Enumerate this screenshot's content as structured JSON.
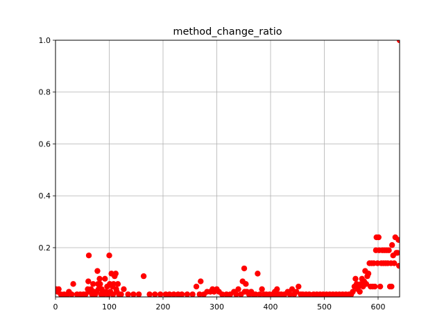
{
  "chart_data": {
    "type": "scatter",
    "title": "method_change_ratio",
    "xlabel": "",
    "ylabel": "",
    "xlim": [
      0,
      640
    ],
    "ylim": [
      0.01,
      1.0
    ],
    "xticks": [
      0,
      100,
      200,
      300,
      400,
      500,
      600
    ],
    "xtick_labels": [
      "0",
      "100",
      "200",
      "300",
      "400",
      "500",
      "600"
    ],
    "yticks": [
      0.2,
      0.4,
      0.6,
      0.8,
      1.0
    ],
    "ytick_labels": [
      "0.2",
      "0.4",
      "0.6",
      "0.8",
      "1.0"
    ],
    "grid": true,
    "marker_color": "#ff0000",
    "grid_color": "#b0b0b0",
    "series": [
      {
        "values": [
          [
            1,
            0.04
          ],
          [
            4,
            0.03
          ],
          [
            6,
            0.04
          ],
          [
            10,
            0.02
          ],
          [
            16,
            0.02
          ],
          [
            22,
            0.02
          ],
          [
            25,
            0.03
          ],
          [
            30,
            0.02
          ],
          [
            33,
            0.06
          ],
          [
            40,
            0.02
          ],
          [
            46,
            0.02
          ],
          [
            52,
            0.02
          ],
          [
            56,
            0.02
          ],
          [
            60,
            0.04
          ],
          [
            61,
            0.07
          ],
          [
            62,
            0.17
          ],
          [
            64,
            0.03
          ],
          [
            66,
            0.04
          ],
          [
            68,
            0.02
          ],
          [
            70,
            0.06
          ],
          [
            72,
            0.03
          ],
          [
            74,
            0.02
          ],
          [
            76,
            0.03
          ],
          [
            78,
            0.11
          ],
          [
            79,
            0.06
          ],
          [
            80,
            0.04
          ],
          [
            82,
            0.08
          ],
          [
            83,
            0.06
          ],
          [
            85,
            0.02
          ],
          [
            86,
            0.04
          ],
          [
            88,
            0.03
          ],
          [
            90,
            0.02
          ],
          [
            92,
            0.08
          ],
          [
            94,
            0.03
          ],
          [
            96,
            0.05
          ],
          [
            98,
            0.02
          ],
          [
            100,
            0.17
          ],
          [
            101,
            0.06
          ],
          [
            102,
            0.03
          ],
          [
            104,
            0.1
          ],
          [
            106,
            0.05
          ],
          [
            107,
            0.02
          ],
          [
            108,
            0.06
          ],
          [
            110,
            0.09
          ],
          [
            112,
            0.1
          ],
          [
            113,
            0.04
          ],
          [
            114,
            0.03
          ],
          [
            116,
            0.06
          ],
          [
            118,
            0.02
          ],
          [
            122,
            0.02
          ],
          [
            127,
            0.04
          ],
          [
            135,
            0.02
          ],
          [
            145,
            0.02
          ],
          [
            155,
            0.02
          ],
          [
            164,
            0.09
          ],
          [
            175,
            0.02
          ],
          [
            185,
            0.02
          ],
          [
            195,
            0.02
          ],
          [
            205,
            0.02
          ],
          [
            212,
            0.02
          ],
          [
            220,
            0.02
          ],
          [
            228,
            0.02
          ],
          [
            235,
            0.02
          ],
          [
            245,
            0.02
          ],
          [
            255,
            0.02
          ],
          [
            262,
            0.05
          ],
          [
            268,
            0.02
          ],
          [
            270,
            0.07
          ],
          [
            276,
            0.02
          ],
          [
            282,
            0.03
          ],
          [
            288,
            0.03
          ],
          [
            292,
            0.04
          ],
          [
            295,
            0.03
          ],
          [
            300,
            0.04
          ],
          [
            304,
            0.03
          ],
          [
            310,
            0.02
          ],
          [
            318,
            0.02
          ],
          [
            325,
            0.02
          ],
          [
            332,
            0.03
          ],
          [
            336,
            0.02
          ],
          [
            340,
            0.04
          ],
          [
            345,
            0.02
          ],
          [
            348,
            0.07
          ],
          [
            351,
            0.12
          ],
          [
            352,
            0.03
          ],
          [
            354,
            0.06
          ],
          [
            356,
            0.03
          ],
          [
            360,
            0.02
          ],
          [
            364,
            0.03
          ],
          [
            368,
            0.02
          ],
          [
            372,
            0.02
          ],
          [
            376,
            0.1
          ],
          [
            380,
            0.02
          ],
          [
            384,
            0.04
          ],
          [
            388,
            0.02
          ],
          [
            392,
            0.02
          ],
          [
            398,
            0.02
          ],
          [
            404,
            0.02
          ],
          [
            408,
            0.03
          ],
          [
            410,
            0.02
          ],
          [
            412,
            0.04
          ],
          [
            416,
            0.02
          ],
          [
            420,
            0.02
          ],
          [
            426,
            0.02
          ],
          [
            432,
            0.03
          ],
          [
            436,
            0.02
          ],
          [
            440,
            0.04
          ],
          [
            444,
            0.02
          ],
          [
            448,
            0.03
          ],
          [
            452,
            0.05
          ],
          [
            456,
            0.02
          ],
          [
            460,
            0.02
          ],
          [
            466,
            0.02
          ],
          [
            472,
            0.02
          ],
          [
            480,
            0.02
          ],
          [
            486,
            0.02
          ],
          [
            492,
            0.02
          ],
          [
            498,
            0.02
          ],
          [
            504,
            0.02
          ],
          [
            510,
            0.02
          ],
          [
            516,
            0.02
          ],
          [
            522,
            0.02
          ],
          [
            528,
            0.02
          ],
          [
            534,
            0.02
          ],
          [
            540,
            0.02
          ],
          [
            546,
            0.02
          ],
          [
            550,
            0.02
          ],
          [
            553,
            0.03
          ],
          [
            556,
            0.05
          ],
          [
            558,
            0.08
          ],
          [
            560,
            0.06
          ],
          [
            562,
            0.04
          ],
          [
            564,
            0.05
          ],
          [
            566,
            0.03
          ],
          [
            568,
            0.06
          ],
          [
            570,
            0.08
          ],
          [
            572,
            0.05
          ],
          [
            574,
            0.07
          ],
          [
            576,
            0.11
          ],
          [
            578,
            0.06
          ],
          [
            580,
            0.09
          ],
          [
            582,
            0.1
          ],
          [
            584,
            0.14
          ],
          [
            586,
            0.05
          ],
          [
            588,
            0.14
          ],
          [
            590,
            0.05
          ],
          [
            592,
            0.14
          ],
          [
            594,
            0.05
          ],
          [
            596,
            0.19
          ],
          [
            597,
            0.24
          ],
          [
            599,
            0.14
          ],
          [
            601,
            0.24
          ],
          [
            602,
            0.19
          ],
          [
            604,
            0.05
          ],
          [
            606,
            0.14
          ],
          [
            608,
            0.19
          ],
          [
            610,
            0.14
          ],
          [
            612,
            0.19
          ],
          [
            614,
            0.14
          ],
          [
            616,
            0.19
          ],
          [
            618,
            0.14
          ],
          [
            620,
            0.19
          ],
          [
            622,
            0.05
          ],
          [
            624,
            0.14
          ],
          [
            625,
            0.05
          ],
          [
            626,
            0.21
          ],
          [
            628,
            0.17
          ],
          [
            630,
            0.14
          ],
          [
            632,
            0.24
          ],
          [
            634,
            0.18
          ],
          [
            636,
            0.18
          ],
          [
            638,
            0.23
          ],
          [
            639,
            0.13
          ],
          [
            640,
            1.0
          ]
        ]
      }
    ]
  }
}
